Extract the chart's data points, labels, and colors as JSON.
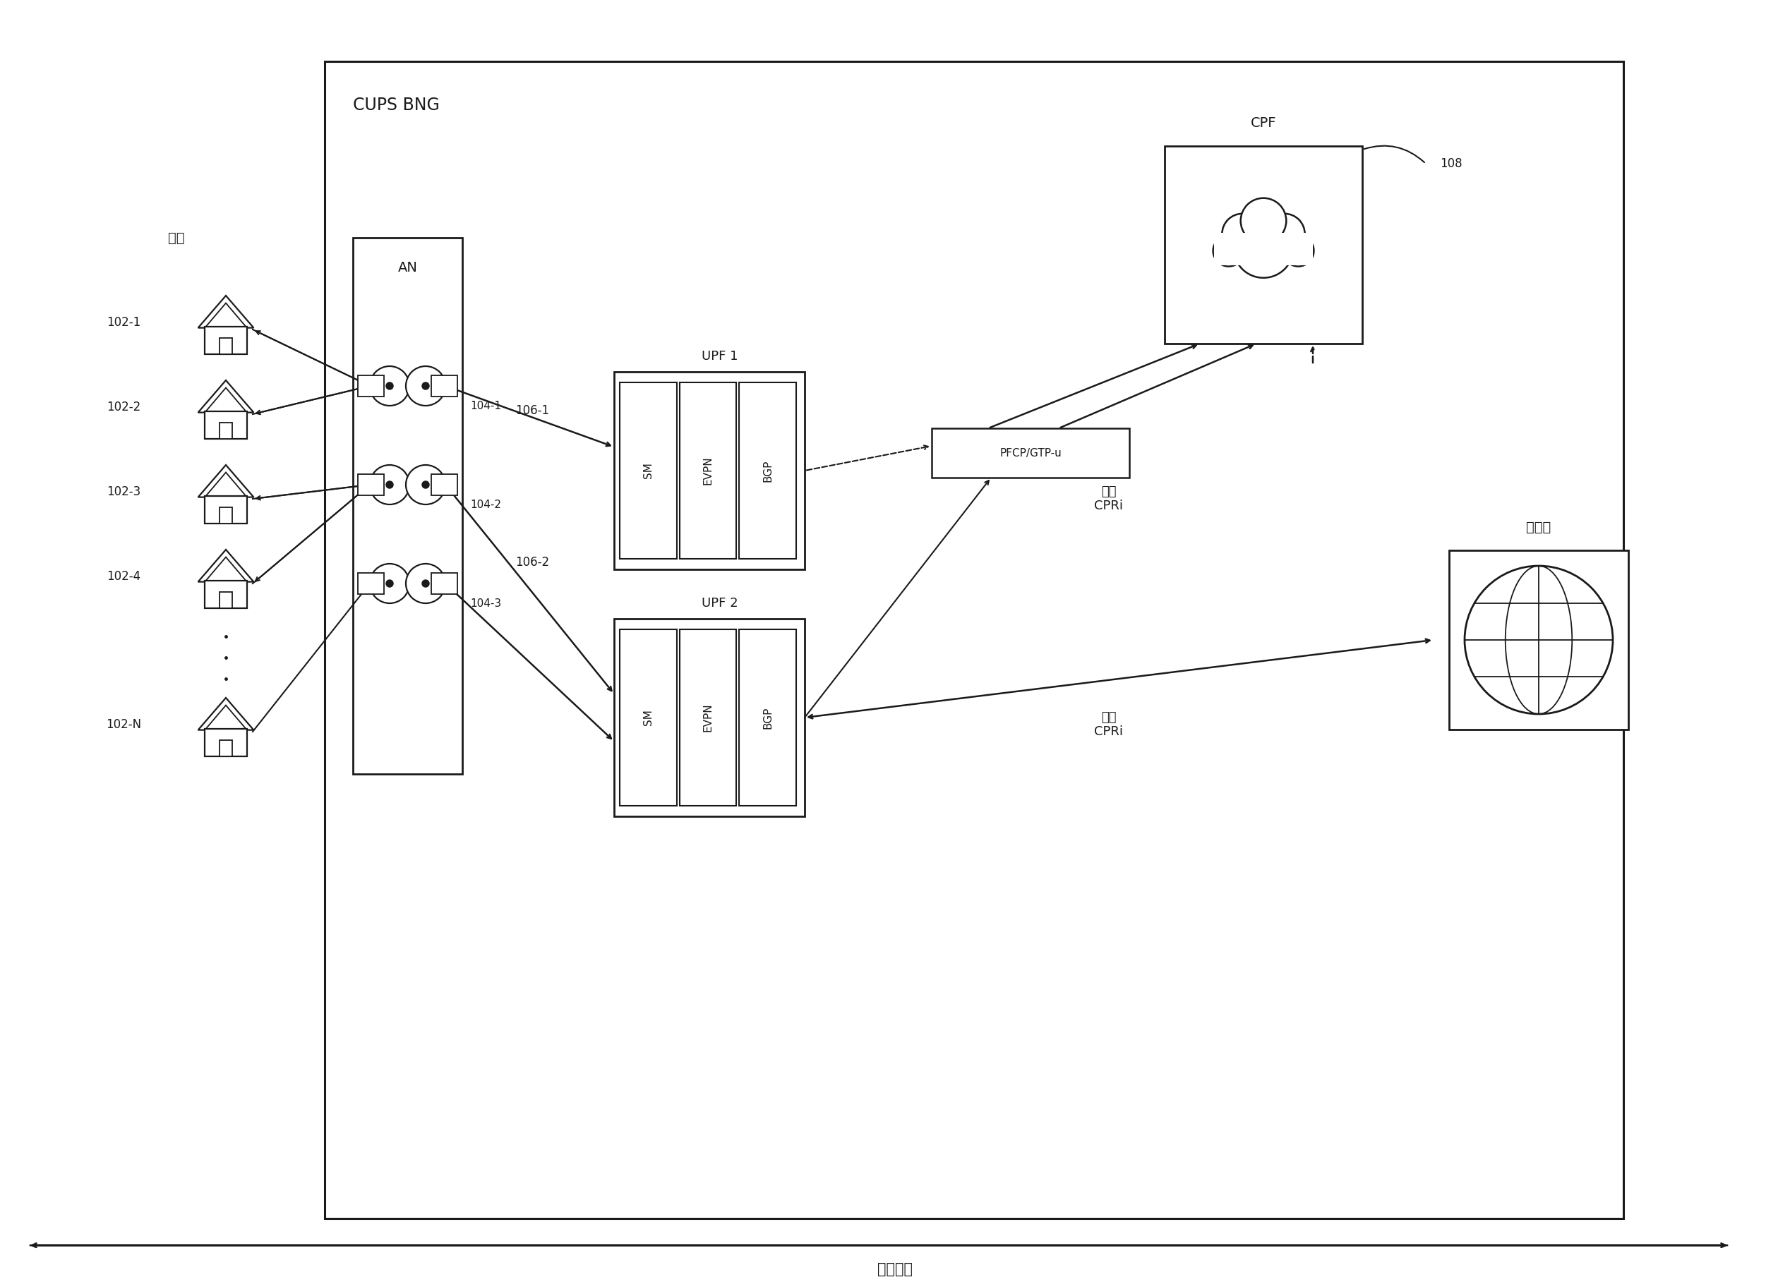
{
  "bg_color": "#ffffff",
  "cups_label": "CUPS BNG",
  "subscriber_label": "订户",
  "internet_label": "互联网",
  "data_path_label": "数据路径",
  "cpf_label": "CPF",
  "upf1_label": "UPF 1",
  "upf2_label": "UPF 2",
  "an_label": "AN",
  "pfcp_label": "PFCP/GTP-u",
  "sm_label": "SM",
  "evpn_label": "EVPN",
  "bgp_label": "BGP",
  "standby_label": "备用\nCPRi",
  "active_label": "活动\nCPRi",
  "label_108": "108",
  "label_1061": "106-1",
  "label_1062": "106-2",
  "label_1041": "104-1",
  "label_1042": "104-2",
  "label_1043": "104-3",
  "label_1021": "102-1",
  "label_1022": "102-2",
  "label_1023": "102-3",
  "label_1024": "102-4",
  "label_102N": "102-N"
}
